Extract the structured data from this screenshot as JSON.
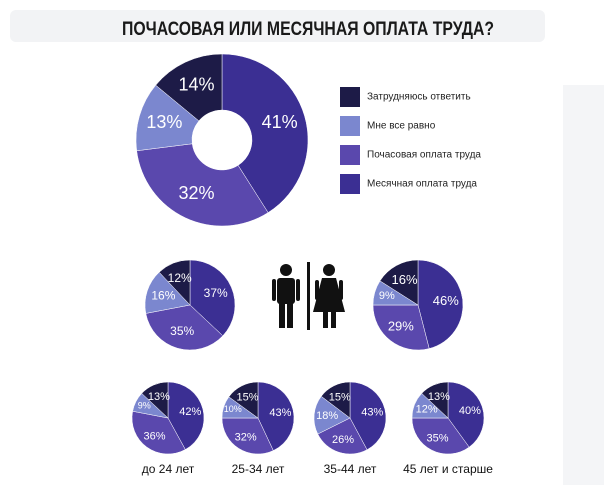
{
  "chart_data": [
    {
      "type": "donut",
      "title": "ПОЧАСОВАЯ ИЛИ МЕСЯЧНАЯ ОПЛАТА ТРУДА?",
      "categories": [
        "Затрудняюсь ответить",
        "Мне все равно",
        "Почасовая оплата труда",
        "Месячная оплата труда"
      ],
      "colors": [
        "#1d1b47",
        "#7b87cf",
        "#5a48ad",
        "#3b2f93"
      ],
      "values": [
        14,
        13,
        32,
        41
      ],
      "value_labels": [
        "14%",
        "13%",
        "32%",
        "41%"
      ]
    },
    {
      "type": "pie",
      "values": [
        12,
        16,
        35,
        37
      ],
      "value_labels": [
        "12%",
        "16%",
        "35%",
        "37%"
      ]
    },
    {
      "type": "pie",
      "values": [
        16,
        9,
        29,
        46
      ],
      "value_labels": [
        "16%",
        "9%",
        "29%",
        "46%"
      ]
    },
    {
      "type": "pie",
      "title": "до 24 лет",
      "values": [
        13,
        9,
        36,
        42
      ],
      "value_labels": [
        "13%",
        "9%",
        "36%",
        "42%"
      ]
    },
    {
      "type": "pie",
      "title": "25-34 лет",
      "values": [
        15,
        10,
        32,
        43
      ],
      "value_labels": [
        "15%",
        "10%",
        "32%",
        "43%"
      ]
    },
    {
      "type": "pie",
      "title": "35-44 лет",
      "values": [
        15,
        18,
        26,
        43
      ],
      "value_labels": [
        "15%",
        "18%",
        "26%",
        "43%"
      ]
    },
    {
      "type": "pie",
      "title": "45 лет и старше",
      "values": [
        13,
        12,
        35,
        40
      ],
      "value_labels": [
        "13%",
        "12%",
        "35%",
        "40%"
      ]
    }
  ]
}
